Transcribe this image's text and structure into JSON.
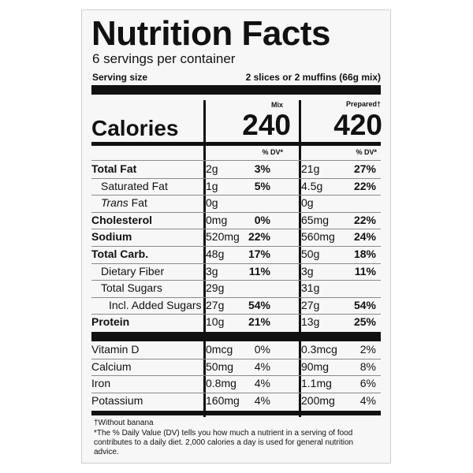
{
  "title": "Nutrition Facts",
  "servings_per_container": "6 servings per container",
  "serving_size_label": "Serving size",
  "serving_size_value": "2 slices or 2 muffins (66g mix)",
  "columns": {
    "mix_label": "Mix",
    "prepared_label": "Prepared†",
    "dv_label": "% DV*"
  },
  "calories": {
    "label": "Calories",
    "mix": "240",
    "prepared": "420"
  },
  "nutrients": [
    {
      "name": "Total Fat",
      "mix_amount": "2g",
      "mix_dv": "3%",
      "prep_amount": "21g",
      "prep_dv": "27%"
    },
    {
      "name": "Saturated Fat",
      "mix_amount": "1g",
      "mix_dv": "5%",
      "prep_amount": "4.5g",
      "prep_dv": "22%"
    },
    {
      "name": "Trans",
      "name_suffix": " Fat",
      "mix_amount": "0g",
      "mix_dv": "",
      "prep_amount": "0g",
      "prep_dv": ""
    },
    {
      "name": "Cholesterol",
      "mix_amount": "0mg",
      "mix_dv": "0%",
      "prep_amount": "65mg",
      "prep_dv": "22%"
    },
    {
      "name": "Sodium",
      "mix_amount": "520mg",
      "mix_dv": "22%",
      "prep_amount": "560mg",
      "prep_dv": "24%"
    },
    {
      "name": "Total Carb.",
      "mix_amount": "48g",
      "mix_dv": "17%",
      "prep_amount": "50g",
      "prep_dv": "18%"
    },
    {
      "name": "Dietary Fiber",
      "mix_amount": "3g",
      "mix_dv": "11%",
      "prep_amount": "3g",
      "prep_dv": "11%"
    },
    {
      "name": "Total Sugars",
      "mix_amount": "29g",
      "mix_dv": "",
      "prep_amount": "31g",
      "prep_dv": ""
    },
    {
      "name": "Incl. Added Sugars",
      "mix_amount": "27g",
      "mix_dv": "54%",
      "prep_amount": "27g",
      "prep_dv": "54%"
    },
    {
      "name": "Protein",
      "mix_amount": "10g",
      "mix_dv": "21%",
      "prep_amount": "13g",
      "prep_dv": "25%"
    }
  ],
  "micronutrients": [
    {
      "name": "Vitamin D",
      "mix_amount": "0mcg",
      "mix_dv": "0%",
      "prep_amount": "0.3mcg",
      "prep_dv": "2%"
    },
    {
      "name": "Calcium",
      "mix_amount": "50mg",
      "mix_dv": "4%",
      "prep_amount": "90mg",
      "prep_dv": "8%"
    },
    {
      "name": "Iron",
      "mix_amount": "0.8mg",
      "mix_dv": "4%",
      "prep_amount": "1.1mg",
      "prep_dv": "6%"
    },
    {
      "name": "Potassium",
      "mix_amount": "160mg",
      "mix_dv": "4%",
      "prep_amount": "200mg",
      "prep_dv": "4%"
    }
  ],
  "footnotes": {
    "without_banana": "†Without banana",
    "dv_note": "*The % Daily Value (DV) tells you how much a nutrient in a serving of food contributes to a daily diet. 2,000 calories a day is used for general nutrition advice."
  }
}
